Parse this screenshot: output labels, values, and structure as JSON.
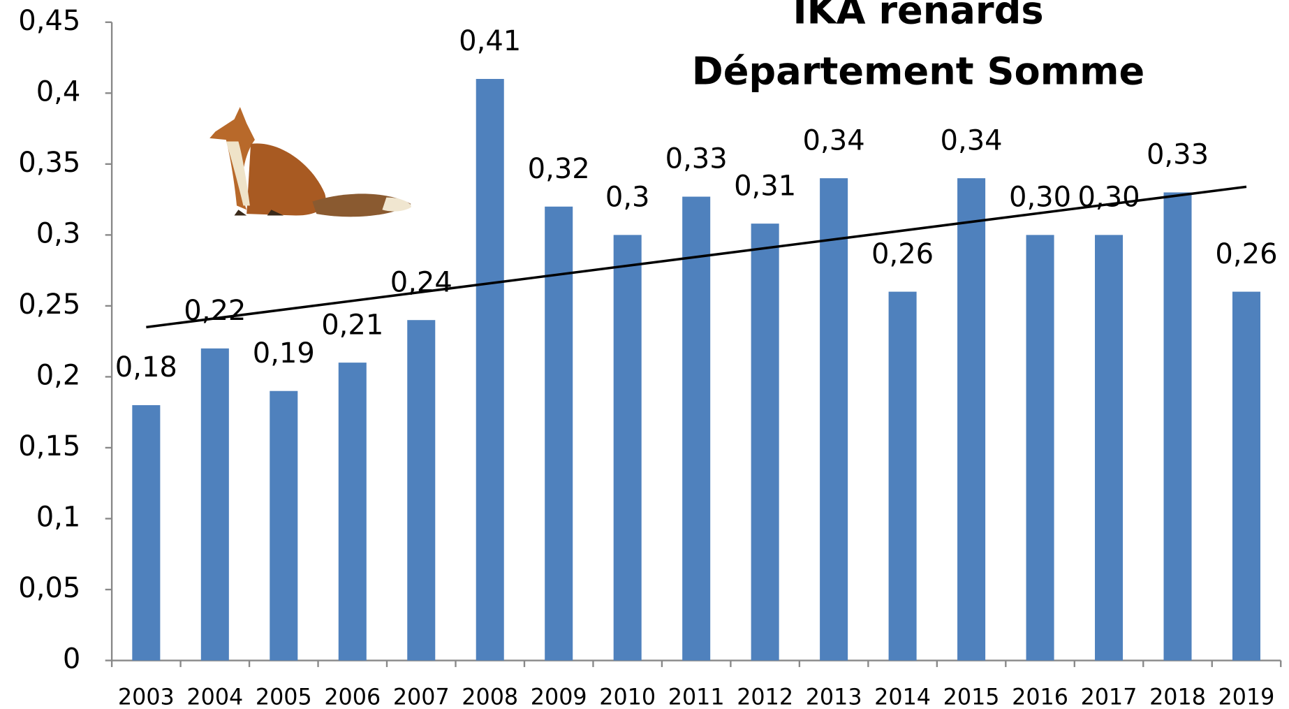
{
  "chart_data": {
    "type": "bar",
    "title": "IKA renards",
    "subtitle": "Département Somme",
    "categories": [
      "2003",
      "2004",
      "2005",
      "2006",
      "2007",
      "2008",
      "2009",
      "2010",
      "2011",
      "2012",
      "2013",
      "2014",
      "2015",
      "2016",
      "2017",
      "2018",
      "2019"
    ],
    "values": [
      0.18,
      0.22,
      0.19,
      0.21,
      0.24,
      0.41,
      0.32,
      0.3,
      0.327,
      0.308,
      0.34,
      0.26,
      0.34,
      0.3,
      0.3,
      0.33,
      0.26
    ],
    "value_labels": [
      "0,18",
      "0,22",
      "0,19",
      "0,21",
      "0,24",
      "0,41",
      "0,32",
      "0,3",
      "0,33",
      "0,31",
      "0,34",
      "0,26",
      "0,34",
      "0,30",
      "0,30",
      "0,33",
      "0,26"
    ],
    "color": "#4f81bd",
    "ylim": [
      0,
      0.45
    ],
    "yticks": [
      0,
      {
        "value": 0.05,
        "label": "0,05"
      },
      {
        "value": 0.1,
        "label": "0,1"
      },
      {
        "value": 0.15,
        "label": "0,15"
      },
      {
        "value": 0.2,
        "label": "0,2"
      },
      {
        "value": 0.25,
        "label": "0,25"
      },
      {
        "value": 0.3,
        "label": "0,3"
      },
      {
        "value": 0.35,
        "label": "0,35"
      },
      {
        "value": 0.4,
        "label": "0,4"
      },
      {
        "value": 0.45,
        "label": "0,45"
      }
    ],
    "trendline": {
      "start": 0.235,
      "end": 0.334,
      "color": "#000000"
    },
    "grid": false
  }
}
